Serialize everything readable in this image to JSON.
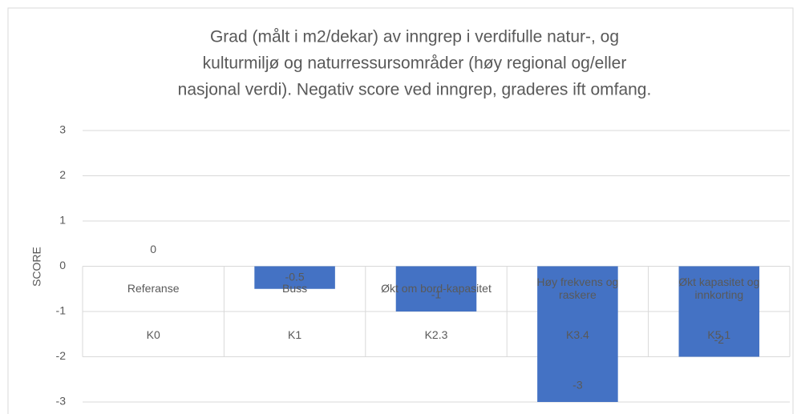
{
  "chart_data": {
    "type": "bar",
    "title": [
      "Grad (målt i m2/dekar) av inngrep i verdifulle natur-, og",
      "kulturmiljø og naturressursområder (høy regional og/eller",
      "nasjonal verdi). Negativ score ved inngrep, graderes ift omfang."
    ],
    "y_label": "SCORE",
    "categories": [
      "Referanse",
      "Buss",
      "Økt om bord-kapasitet",
      "Høy frekvens og raskere",
      "Økt kapasitet og innkorting"
    ],
    "category_groups": [
      "K0",
      "K1",
      "K2.3",
      "K3.4",
      "K5.1"
    ],
    "values": [
      0,
      -0.5,
      -1,
      -3,
      -2
    ],
    "color": "#4472c4",
    "ylim": [
      -3,
      3
    ],
    "yticks": [
      -3,
      -2,
      -1,
      0,
      1,
      2,
      3
    ],
    "grid": true
  }
}
